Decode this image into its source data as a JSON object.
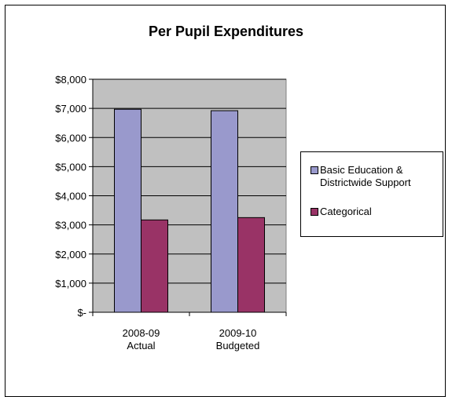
{
  "chart_data": {
    "type": "bar",
    "title": "Per Pupil Expenditures",
    "categories": [
      [
        "2008-09",
        "Actual"
      ],
      [
        "2009-10",
        "Budgeted"
      ]
    ],
    "series": [
      {
        "name": "Basic Education & Districtwide Support",
        "values": [
          6970,
          6920
        ],
        "color": "#9999cc"
      },
      {
        "name": "Categorical",
        "values": [
          3170,
          3250
        ],
        "color": "#993366"
      }
    ],
    "y_ticks": [
      {
        "value": 0,
        "label": "$-"
      },
      {
        "value": 1000,
        "label": "$1,000"
      },
      {
        "value": 2000,
        "label": "$2,000"
      },
      {
        "value": 3000,
        "label": "$3,000"
      },
      {
        "value": 4000,
        "label": "$4,000"
      },
      {
        "value": 5000,
        "label": "$5,000"
      },
      {
        "value": 6000,
        "label": "$6,000"
      },
      {
        "value": 7000,
        "label": "$7,000"
      },
      {
        "value": 8000,
        "label": "$8,000"
      }
    ],
    "ylim": [
      0,
      8000
    ],
    "grid": true,
    "legend_position": "right",
    "plot_background": "#c0c0c0"
  }
}
